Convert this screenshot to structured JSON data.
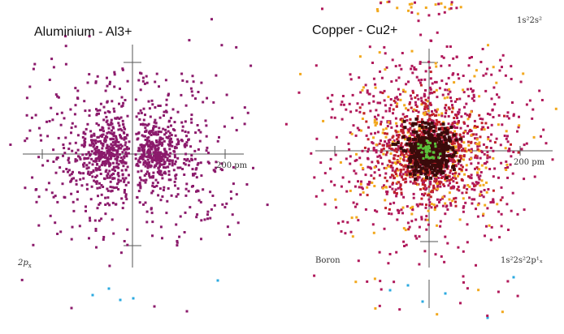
{
  "panels": [
    {
      "title": "Aluminium - Al3+",
      "scale_label": "200 pm",
      "orbital_label": "2p",
      "orbital_subscript": "x",
      "colors": {
        "primary": "#8b1a6b",
        "secondary": "#2aa9e0"
      }
    },
    {
      "title": "Copper - Cu2+",
      "scale_label": "200 pm",
      "element_label": "Boron",
      "config_top": "1s²2s²",
      "config_bottom": "1s²2s²2p¹ₓ",
      "colors": {
        "primary": "#b0185a",
        "core": "#3a0b0b",
        "mid": "#c0202a",
        "outer": "#f2a81d",
        "nucleus": "#5bc23a",
        "secondary": "#2aa9e0"
      }
    }
  ]
}
